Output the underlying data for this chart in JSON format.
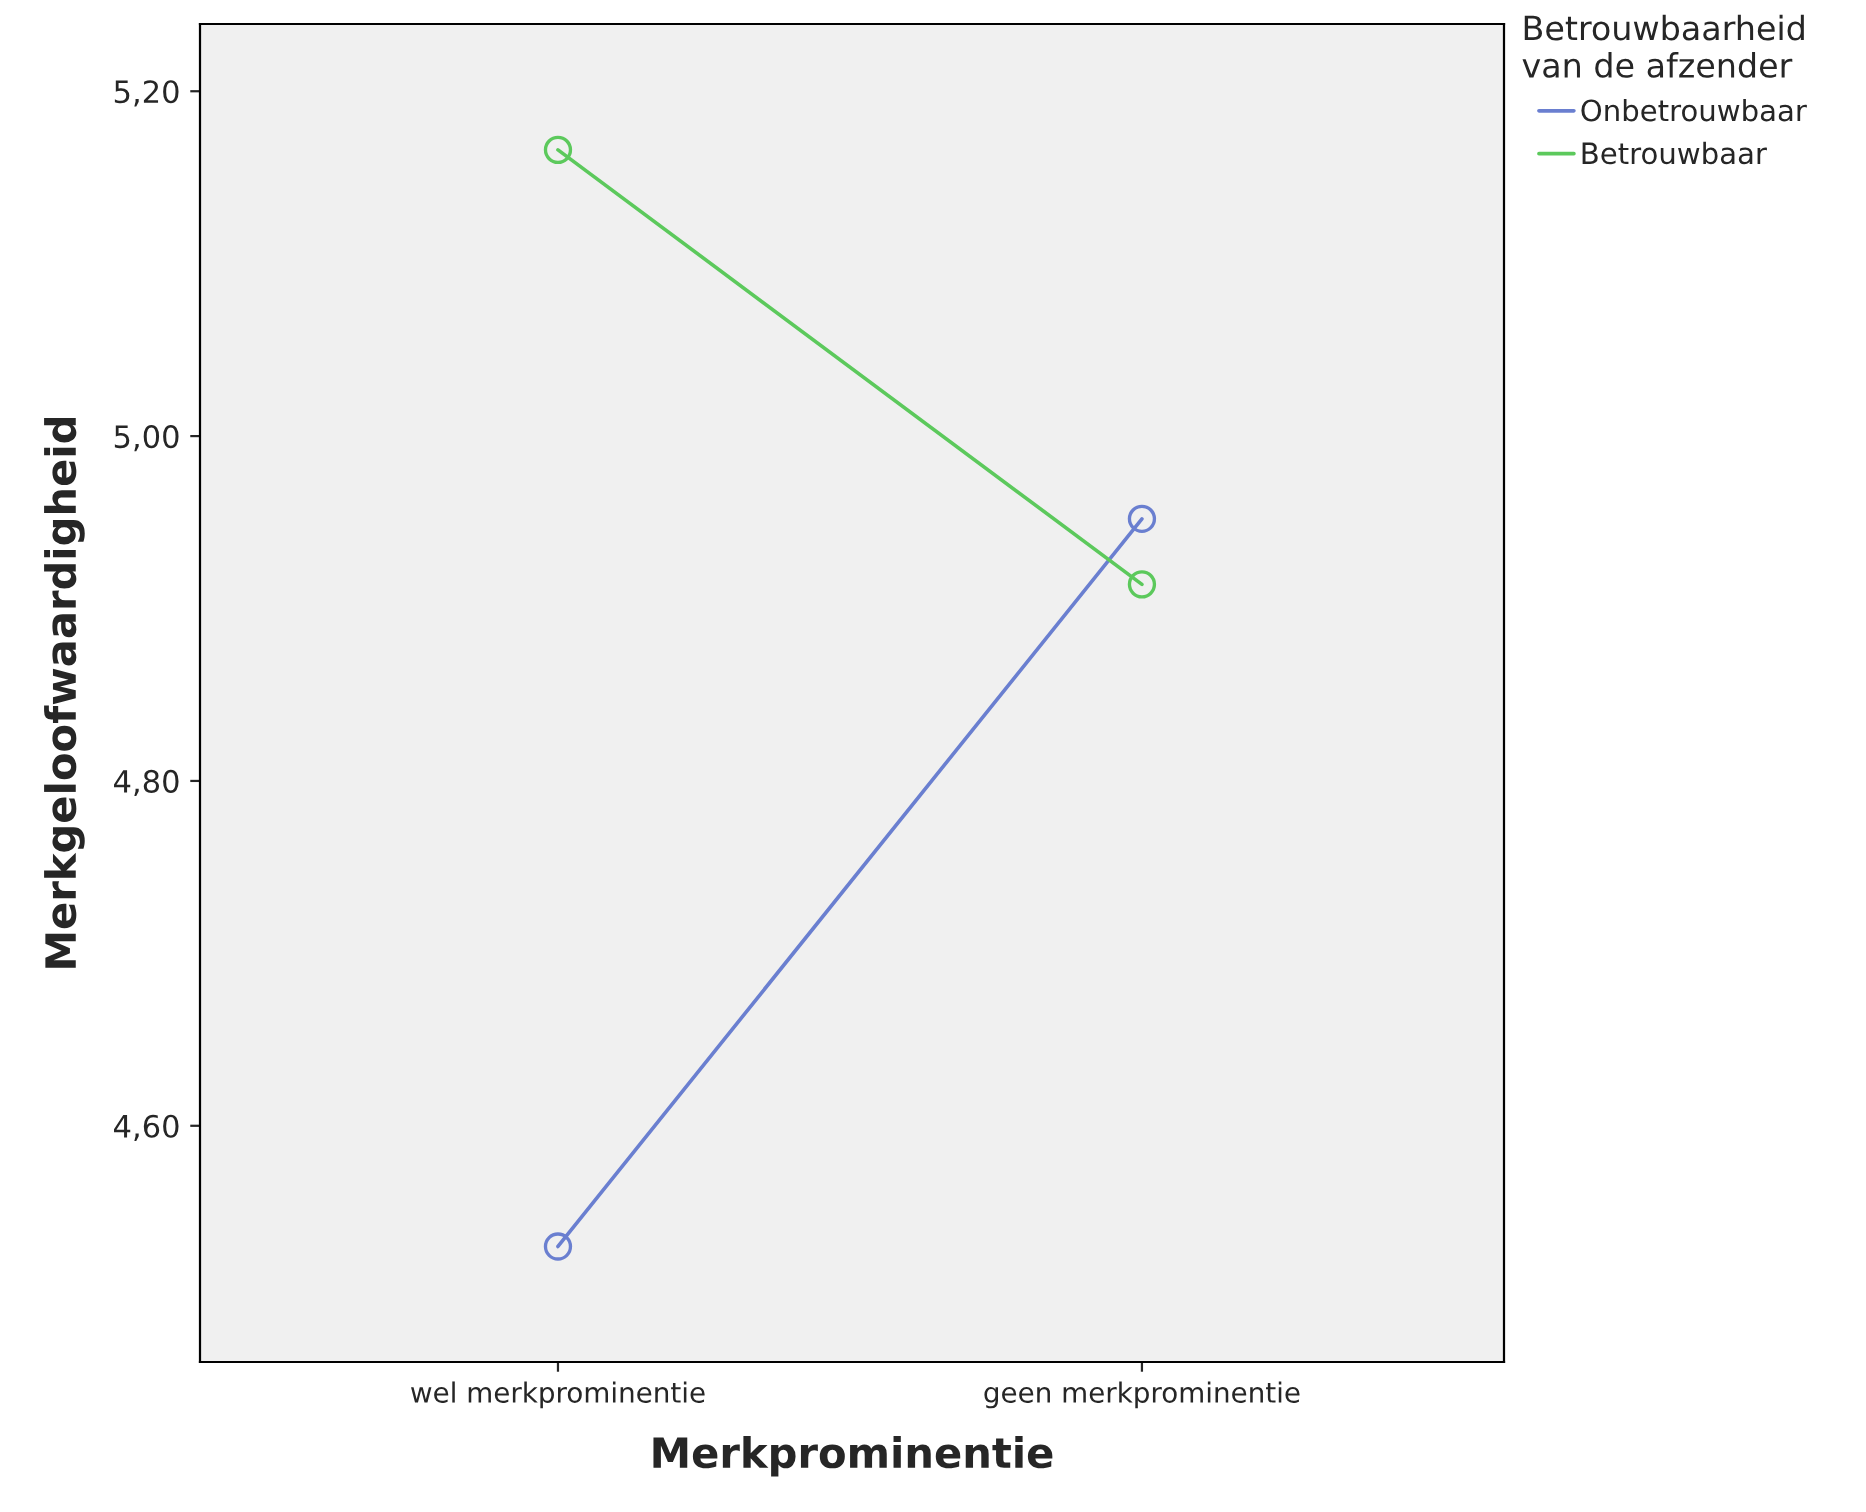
{
  "chart_data": {
    "type": "line",
    "xlabel": "Merkprominentie",
    "ylabel": "Merkgeloofwaardigheid",
    "legend_title": "Betrouwbaarheid\nvan de afzender",
    "categories": [
      "wel merkprominentie",
      "geen merkprominentie"
    ],
    "series": [
      {
        "name": "Onbetrouwbaar",
        "color": "#6a7fd0",
        "values": [
          4.53,
          4.952
        ]
      },
      {
        "name": "Betrouwbaar",
        "color": "#5cc95c",
        "values": [
          5.166,
          4.914
        ]
      }
    ],
    "ylim": [
      4.463,
      5.239
    ],
    "yticks": [
      {
        "value": 4.6,
        "label": "4,60"
      },
      {
        "value": 4.8,
        "label": "4,80"
      },
      {
        "value": 5.0,
        "label": "5,00"
      },
      {
        "value": 5.2,
        "label": "5,20"
      }
    ],
    "marker": "circle",
    "line_style": "solid",
    "grid": false,
    "legend": "right"
  }
}
